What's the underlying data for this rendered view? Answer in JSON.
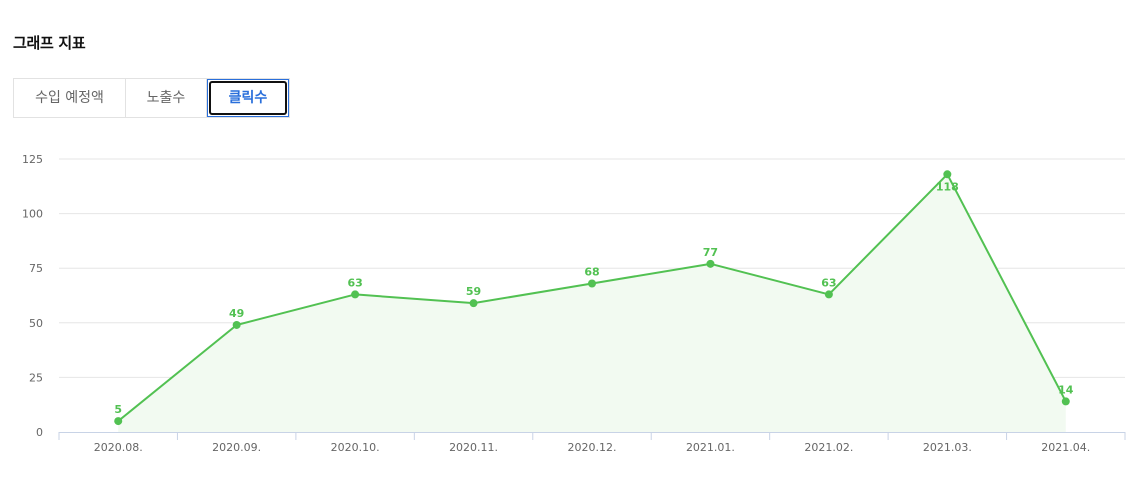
{
  "section": {
    "title": "그래프 지표"
  },
  "tabs": [
    {
      "label": "수입 예정액",
      "active": false
    },
    {
      "label": "노출수",
      "active": false
    },
    {
      "label": "클릭수",
      "active": true
    }
  ],
  "colors": {
    "series": "#52c152",
    "area": "#f2faf1",
    "grid": "#e6e6e6",
    "axis": "#c8d3e6",
    "tab_active": "#2a6fdb"
  },
  "chart_data": {
    "type": "area",
    "title": "",
    "xlabel": "",
    "ylabel": "",
    "categories": [
      "2020.08.",
      "2020.09.",
      "2020.10.",
      "2020.11.",
      "2020.12.",
      "2021.01.",
      "2021.02.",
      "2021.03.",
      "2021.04."
    ],
    "series": [
      {
        "values": [
          5,
          49,
          63,
          59,
          68,
          77,
          63,
          118,
          14
        ]
      }
    ],
    "ylim": [
      0,
      125
    ],
    "yticks": [
      0,
      25,
      50,
      75,
      100,
      125
    ],
    "grid": true,
    "legend": "none",
    "data_labels": true
  }
}
